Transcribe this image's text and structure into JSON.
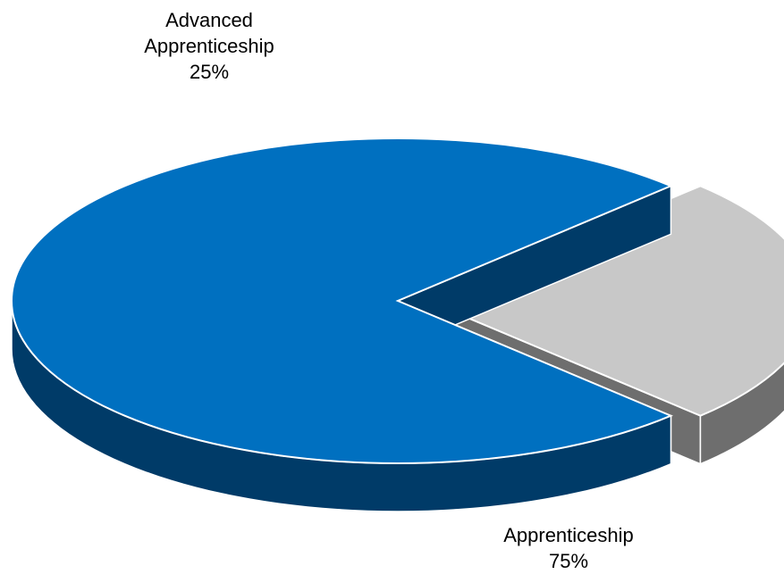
{
  "chart_data": {
    "type": "pie",
    "style": "3d-exploded",
    "title": "",
    "legend": "none",
    "series": [
      {
        "categories": [
          "Advanced Apprenticeship",
          "Apprenticeship"
        ],
        "values": [
          25,
          75
        ],
        "percent_labels": [
          "25%",
          "75%"
        ],
        "colors": [
          "#C8C8C8",
          "#0070C0"
        ],
        "side_colors": [
          "#6E6E6E",
          "#003B68"
        ],
        "label_lines": [
          [
            "Advanced",
            "Apprenticeship"
          ],
          [
            "Apprenticeship"
          ]
        ]
      }
    ]
  }
}
